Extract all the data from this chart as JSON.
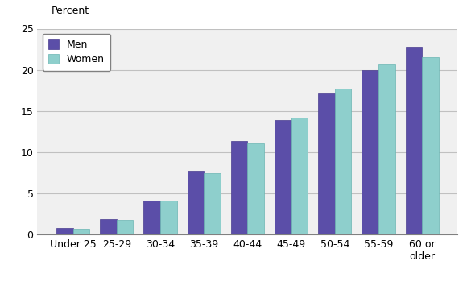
{
  "categories": [
    "Under 25",
    "25-29",
    "30-34",
    "35-39",
    "40-44",
    "45-49",
    "50-54",
    "55-59",
    "60 or\nolder"
  ],
  "men_values": [
    0.8,
    1.9,
    4.1,
    7.7,
    11.4,
    13.9,
    17.1,
    20.0,
    22.8
  ],
  "women_values": [
    0.7,
    1.8,
    4.1,
    7.4,
    11.1,
    14.2,
    17.7,
    20.6,
    21.5
  ],
  "men_color": "#5b4ea8",
  "women_color": "#8ecfcc",
  "men_edge_color": "#4a3d8f",
  "women_edge_color": "#6ab5b2",
  "ylabel": "Percent",
  "ylim": [
    0,
    25
  ],
  "yticks": [
    0,
    5,
    10,
    15,
    20,
    25
  ],
  "legend_labels": [
    "Men",
    "Women"
  ],
  "bar_width": 0.38,
  "grid_color": "#c0c0c0",
  "background_color": "#ffffff",
  "plot_bg_color": "#f0f0f0",
  "tick_fontsize": 9,
  "legend_fontsize": 9
}
